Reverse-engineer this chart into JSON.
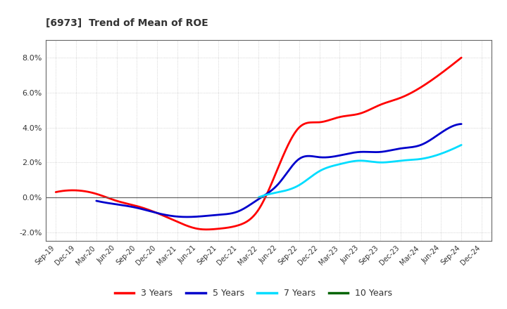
{
  "title": "[6973]  Trend of Mean of ROE",
  "x_labels": [
    "Sep-19",
    "Dec-19",
    "Mar-20",
    "Jun-20",
    "Sep-20",
    "Dec-20",
    "Mar-21",
    "Jun-21",
    "Sep-21",
    "Dec-21",
    "Mar-22",
    "Jun-22",
    "Sep-22",
    "Dec-22",
    "Mar-23",
    "Jun-23",
    "Sep-23",
    "Dec-23",
    "Mar-24",
    "Jun-24",
    "Sep-24",
    "Dec-24"
  ],
  "series": {
    "3 Years": {
      "color": "#ff0000",
      "values": [
        0.003,
        0.004,
        0.002,
        -0.002,
        -0.005,
        -0.009,
        -0.014,
        -0.018,
        -0.018,
        -0.016,
        -0.007,
        0.018,
        0.04,
        0.043,
        0.046,
        0.048,
        0.053,
        0.057,
        0.063,
        0.071,
        0.08,
        null
      ]
    },
    "5 Years": {
      "color": "#0000cc",
      "values": [
        null,
        null,
        -0.002,
        -0.004,
        -0.006,
        -0.009,
        -0.011,
        -0.011,
        -0.01,
        -0.008,
        -0.001,
        0.008,
        0.022,
        0.023,
        0.024,
        0.026,
        0.026,
        0.028,
        0.03,
        0.037,
        0.042,
        null
      ]
    },
    "7 Years": {
      "color": "#00ddff",
      "values": [
        null,
        null,
        null,
        null,
        null,
        null,
        null,
        null,
        null,
        null,
        0.0,
        0.003,
        0.007,
        0.015,
        0.019,
        0.021,
        0.02,
        0.021,
        0.022,
        0.025,
        0.03,
        null
      ]
    },
    "10 Years": {
      "color": "#006400",
      "values": [
        null,
        null,
        null,
        null,
        null,
        null,
        null,
        null,
        null,
        null,
        null,
        null,
        null,
        null,
        null,
        null,
        null,
        null,
        null,
        null,
        null,
        null
      ]
    }
  },
  "ylim": [
    -0.025,
    0.09
  ],
  "yticks": [
    -0.02,
    0.0,
    0.02,
    0.04,
    0.06,
    0.08
  ],
  "yticklabels": [
    "-2.0%",
    "0.0%",
    "2.0%",
    "4.0%",
    "6.0%",
    "8.0%"
  ],
  "background_color": "#ffffff",
  "grid_color": "#aaaaaa",
  "legend_labels": [
    "3 Years",
    "5 Years",
    "7 Years",
    "10 Years"
  ],
  "legend_colors": [
    "#ff0000",
    "#0000cc",
    "#00ddff",
    "#006400"
  ]
}
